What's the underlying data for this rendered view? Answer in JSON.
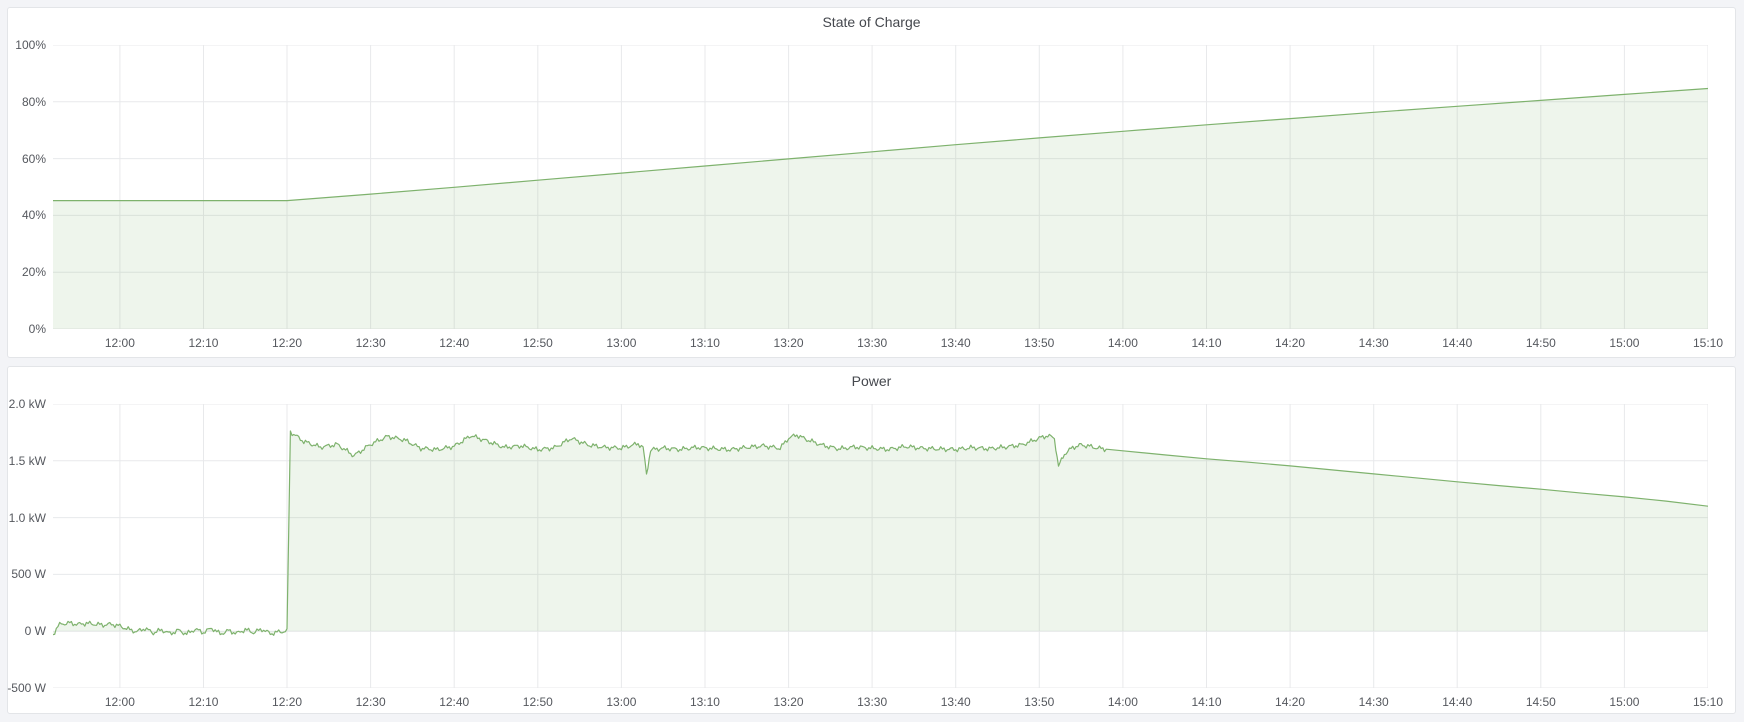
{
  "accent_color": "#7eb26d",
  "grid_color": "#e8e9eb",
  "panel_background": "#ffffff",
  "page_background": "#f3f4f7",
  "chart_data": [
    {
      "type": "area",
      "title": "State of Charge",
      "unit": "%",
      "legend": "none",
      "grid": true,
      "line_color": "#7eb26d",
      "fill_color": "rgba(126,178,109,0.13)",
      "x_unit": "minutes_since_midnight",
      "x_range": [
        712,
        910
      ],
      "y_range": [
        0,
        100
      ],
      "y_ticks": [
        {
          "value": 0,
          "label": "0%"
        },
        {
          "value": 20,
          "label": "20%"
        },
        {
          "value": 40,
          "label": "40%"
        },
        {
          "value": 60,
          "label": "60%"
        },
        {
          "value": 80,
          "label": "80%"
        },
        {
          "value": 100,
          "label": "100%"
        }
      ],
      "x_ticks": [
        {
          "min": 720,
          "label": "12:00"
        },
        {
          "min": 730,
          "label": "12:10"
        },
        {
          "min": 740,
          "label": "12:20"
        },
        {
          "min": 750,
          "label": "12:30"
        },
        {
          "min": 760,
          "label": "12:40"
        },
        {
          "min": 770,
          "label": "12:50"
        },
        {
          "min": 780,
          "label": "13:00"
        },
        {
          "min": 790,
          "label": "13:10"
        },
        {
          "min": 800,
          "label": "13:20"
        },
        {
          "min": 810,
          "label": "13:30"
        },
        {
          "min": 820,
          "label": "13:40"
        },
        {
          "min": 830,
          "label": "13:50"
        },
        {
          "min": 840,
          "label": "14:00"
        },
        {
          "min": 850,
          "label": "14:10"
        },
        {
          "min": 860,
          "label": "14:20"
        },
        {
          "min": 870,
          "label": "14:30"
        },
        {
          "min": 880,
          "label": "14:40"
        },
        {
          "min": 890,
          "label": "14:50"
        },
        {
          "min": 900,
          "label": "15:00"
        },
        {
          "min": 910,
          "label": "15:10"
        }
      ],
      "points": [
        [
          712,
          45.2
        ],
        [
          720,
          45.2
        ],
        [
          730,
          45.2
        ],
        [
          740,
          45.2
        ],
        [
          750,
          47.5
        ],
        [
          760,
          49.9
        ],
        [
          770,
          52.4
        ],
        [
          780,
          54.9
        ],
        [
          790,
          57.4
        ],
        [
          800,
          59.9
        ],
        [
          810,
          62.4
        ],
        [
          820,
          64.9
        ],
        [
          830,
          67.3
        ],
        [
          840,
          69.6
        ],
        [
          850,
          71.9
        ],
        [
          860,
          74.1
        ],
        [
          870,
          76.3
        ],
        [
          880,
          78.4
        ],
        [
          890,
          80.5
        ],
        [
          900,
          82.6
        ],
        [
          910,
          84.7
        ]
      ]
    },
    {
      "type": "area",
      "title": "Power",
      "unit": "W",
      "legend": "none",
      "grid": true,
      "line_color": "#7eb26d",
      "fill_color": "rgba(126,178,109,0.13)",
      "x_unit": "minutes_since_midnight",
      "x_range": [
        712,
        910
      ],
      "y_range": [
        -500,
        2000
      ],
      "y_ticks": [
        {
          "value": -500,
          "label": "-500 W"
        },
        {
          "value": 0,
          "label": "0 W"
        },
        {
          "value": 500,
          "label": "500 W"
        },
        {
          "value": 1000,
          "label": "1.0 kW"
        },
        {
          "value": 1500,
          "label": "1.5 kW"
        },
        {
          "value": 2000,
          "label": "2.0 kW"
        }
      ],
      "x_ticks": [
        {
          "min": 720,
          "label": "12:00"
        },
        {
          "min": 730,
          "label": "12:10"
        },
        {
          "min": 740,
          "label": "12:20"
        },
        {
          "min": 750,
          "label": "12:30"
        },
        {
          "min": 760,
          "label": "12:40"
        },
        {
          "min": 770,
          "label": "12:50"
        },
        {
          "min": 780,
          "label": "13:00"
        },
        {
          "min": 790,
          "label": "13:10"
        },
        {
          "min": 800,
          "label": "13:20"
        },
        {
          "min": 810,
          "label": "13:30"
        },
        {
          "min": 820,
          "label": "13:40"
        },
        {
          "min": 830,
          "label": "13:50"
        },
        {
          "min": 840,
          "label": "14:00"
        },
        {
          "min": 850,
          "label": "14:10"
        },
        {
          "min": 860,
          "label": "14:20"
        },
        {
          "min": 870,
          "label": "14:30"
        },
        {
          "min": 880,
          "label": "14:40"
        },
        {
          "min": 890,
          "label": "14:50"
        },
        {
          "min": 900,
          "label": "15:00"
        },
        {
          "min": 910,
          "label": "15:10"
        }
      ],
      "noise": {
        "from_min": 712,
        "until_min": 838,
        "amplitude_w": 24
      },
      "points": [
        [
          712,
          -30
        ],
        [
          712.6,
          45
        ],
        [
          713,
          65
        ],
        [
          714,
          72
        ],
        [
          715,
          60
        ],
        [
          716,
          70
        ],
        [
          717,
          62
        ],
        [
          718,
          55
        ],
        [
          719,
          62
        ],
        [
          720,
          45
        ],
        [
          721,
          18
        ],
        [
          722,
          -5
        ],
        [
          723,
          25
        ],
        [
          724,
          -15
        ],
        [
          725,
          12
        ],
        [
          726,
          -22
        ],
        [
          727,
          8
        ],
        [
          728,
          -25
        ],
        [
          729,
          18
        ],
        [
          730,
          -12
        ],
        [
          731,
          28
        ],
        [
          732,
          -25
        ],
        [
          733,
          5
        ],
        [
          734,
          -20
        ],
        [
          735,
          15
        ],
        [
          736,
          -12
        ],
        [
          737,
          18
        ],
        [
          738,
          -22
        ],
        [
          739,
          -6
        ],
        [
          740,
          0
        ],
        [
          740.4,
          1755
        ],
        [
          742,
          1670
        ],
        [
          744,
          1620
        ],
        [
          746,
          1645
        ],
        [
          748,
          1545
        ],
        [
          750,
          1645
        ],
        [
          752,
          1715
        ],
        [
          754,
          1685
        ],
        [
          756,
          1610
        ],
        [
          758,
          1598
        ],
        [
          760,
          1628
        ],
        [
          762,
          1722
        ],
        [
          764,
          1672
        ],
        [
          766,
          1618
        ],
        [
          768,
          1632
        ],
        [
          770,
          1598
        ],
        [
          772,
          1615
        ],
        [
          774,
          1698
        ],
        [
          776,
          1640
        ],
        [
          778,
          1618
        ],
        [
          780,
          1612
        ],
        [
          782,
          1650
        ],
        [
          782.6,
          1618
        ],
        [
          783,
          1380
        ],
        [
          783.5,
          1595
        ],
        [
          785,
          1612
        ],
        [
          787,
          1600
        ],
        [
          789,
          1618
        ],
        [
          791,
          1608
        ],
        [
          793,
          1598
        ],
        [
          795,
          1618
        ],
        [
          797,
          1632
        ],
        [
          799,
          1610
        ],
        [
          800,
          1700
        ],
        [
          801,
          1728
        ],
        [
          802,
          1692
        ],
        [
          804,
          1638
        ],
        [
          806,
          1605
        ],
        [
          808,
          1622
        ],
        [
          810,
          1610
        ],
        [
          812,
          1600
        ],
        [
          814,
          1626
        ],
        [
          816,
          1610
        ],
        [
          818,
          1604
        ],
        [
          820,
          1600
        ],
        [
          822,
          1616
        ],
        [
          824,
          1606
        ],
        [
          826,
          1622
        ],
        [
          828,
          1642
        ],
        [
          830,
          1700
        ],
        [
          831,
          1722
        ],
        [
          831.8,
          1700
        ],
        [
          832.3,
          1450
        ],
        [
          833,
          1560
        ],
        [
          834,
          1618
        ],
        [
          835,
          1640
        ],
        [
          836,
          1628
        ],
        [
          837,
          1612
        ],
        [
          838,
          1602
        ],
        [
          840,
          1588
        ],
        [
          845,
          1552
        ],
        [
          850,
          1518
        ],
        [
          855,
          1488
        ],
        [
          860,
          1455
        ],
        [
          865,
          1420
        ],
        [
          870,
          1385
        ],
        [
          875,
          1350
        ],
        [
          880,
          1315
        ],
        [
          885,
          1282
        ],
        [
          890,
          1250
        ],
        [
          895,
          1215
        ],
        [
          900,
          1182
        ],
        [
          905,
          1145
        ],
        [
          910,
          1100
        ]
      ]
    }
  ]
}
